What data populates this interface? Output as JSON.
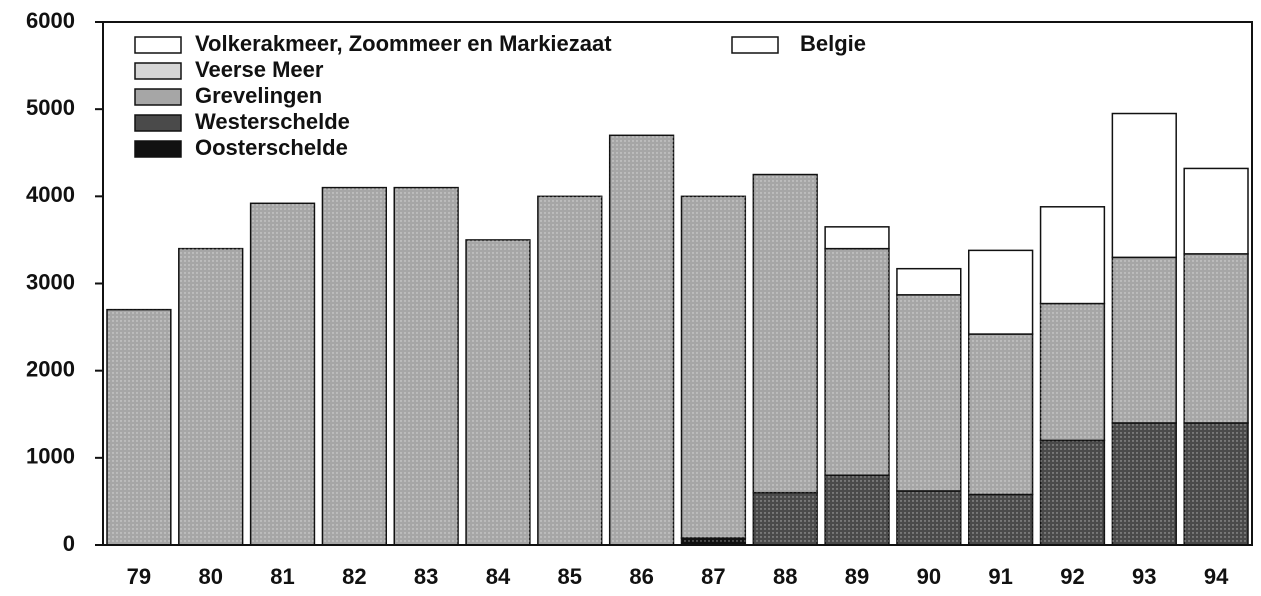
{
  "chart_data": {
    "type": "stacked_bar",
    "categories": [
      "79",
      "80",
      "81",
      "82",
      "83",
      "84",
      "85",
      "86",
      "87",
      "88",
      "89",
      "90",
      "91",
      "92",
      "93",
      "94"
    ],
    "series": [
      {
        "name": "Volkerakmeer, Zoommeer en Markiezaat",
        "color": "#ffffff",
        "values": [
          0,
          0,
          0,
          0,
          0,
          0,
          0,
          0,
          0,
          0,
          0,
          0,
          0,
          0,
          0,
          0
        ]
      },
      {
        "name": "Belgie",
        "color": "#ffffff",
        "values": [
          0,
          0,
          0,
          0,
          0,
          0,
          0,
          0,
          0,
          0,
          250,
          300,
          960,
          1110,
          1650,
          980
        ]
      },
      {
        "name": "Veerse Meer",
        "color": "#d6d6d6",
        "values": [
          0,
          0,
          0,
          0,
          0,
          0,
          0,
          0,
          0,
          0,
          0,
          0,
          0,
          0,
          0,
          0
        ]
      },
      {
        "name": "Grevelingen",
        "color": "#a6a6a6",
        "values": [
          2700,
          3400,
          3920,
          4100,
          4100,
          3500,
          4000,
          4700,
          3920,
          3650,
          2600,
          2250,
          1840,
          1570,
          1900,
          1940
        ]
      },
      {
        "name": "Westerschelde",
        "color": "#4a4a4a",
        "values": [
          0,
          0,
          0,
          0,
          0,
          0,
          0,
          0,
          0,
          600,
          800,
          620,
          580,
          1200,
          1400,
          1400
        ]
      },
      {
        "name": "Oosterschelde",
        "color": "#111111",
        "values": [
          0,
          0,
          0,
          0,
          0,
          0,
          0,
          0,
          80,
          0,
          0,
          0,
          0,
          0,
          0,
          0
        ]
      }
    ],
    "ylim": [
      0,
      6000
    ],
    "yticks": [
      0,
      1000,
      2000,
      3000,
      4000,
      5000,
      6000
    ]
  }
}
